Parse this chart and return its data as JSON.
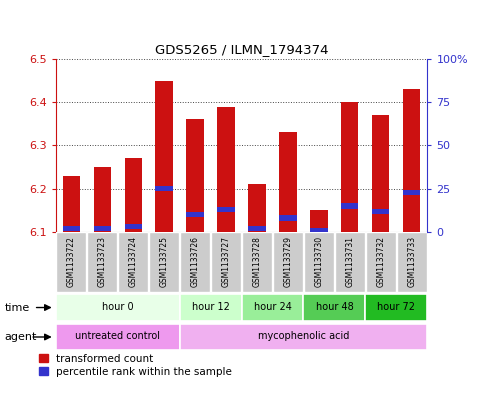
{
  "title": "GDS5265 / ILMN_1794374",
  "samples": [
    "GSM1133722",
    "GSM1133723",
    "GSM1133724",
    "GSM1133725",
    "GSM1133726",
    "GSM1133727",
    "GSM1133728",
    "GSM1133729",
    "GSM1133730",
    "GSM1133731",
    "GSM1133732",
    "GSM1133733"
  ],
  "transformed_count": [
    6.23,
    6.25,
    6.27,
    6.45,
    6.36,
    6.39,
    6.21,
    6.33,
    6.15,
    6.4,
    6.37,
    6.43
  ],
  "percentile_rank": [
    2.0,
    2.0,
    3.0,
    25.0,
    10.0,
    13.0,
    2.0,
    8.0,
    1.0,
    15.0,
    12.0,
    23.0
  ],
  "bar_bottom": 6.1,
  "ylim_left": [
    6.1,
    6.5
  ],
  "ylim_right": [
    0,
    100
  ],
  "yticks_left": [
    6.1,
    6.2,
    6.3,
    6.4,
    6.5
  ],
  "yticks_right": [
    0,
    25,
    50,
    75,
    100
  ],
  "ytick_labels_right": [
    "0",
    "25",
    "50",
    "75",
    "100%"
  ],
  "red_color": "#cc1111",
  "blue_color": "#3333cc",
  "bar_width": 0.55,
  "time_groups": [
    {
      "label": "hour 0",
      "indices": [
        0,
        1,
        2,
        3
      ],
      "color": "#e8ffe8"
    },
    {
      "label": "hour 12",
      "indices": [
        4,
        5
      ],
      "color": "#ccffcc"
    },
    {
      "label": "hour 24",
      "indices": [
        6,
        7
      ],
      "color": "#99ee99"
    },
    {
      "label": "hour 48",
      "indices": [
        8,
        9
      ],
      "color": "#55cc55"
    },
    {
      "label": "hour 72",
      "indices": [
        10,
        11
      ],
      "color": "#22bb22"
    }
  ],
  "agent_groups": [
    {
      "label": "untreated control",
      "indices": [
        0,
        1,
        2,
        3
      ],
      "color": "#ee99ee"
    },
    {
      "label": "mycophenolic acid",
      "indices": [
        4,
        5,
        6,
        7,
        8,
        9,
        10,
        11
      ],
      "color": "#f0b0f0"
    }
  ],
  "bg_color": "#ffffff",
  "grid_color": "#000000",
  "sample_bg": "#cccccc"
}
